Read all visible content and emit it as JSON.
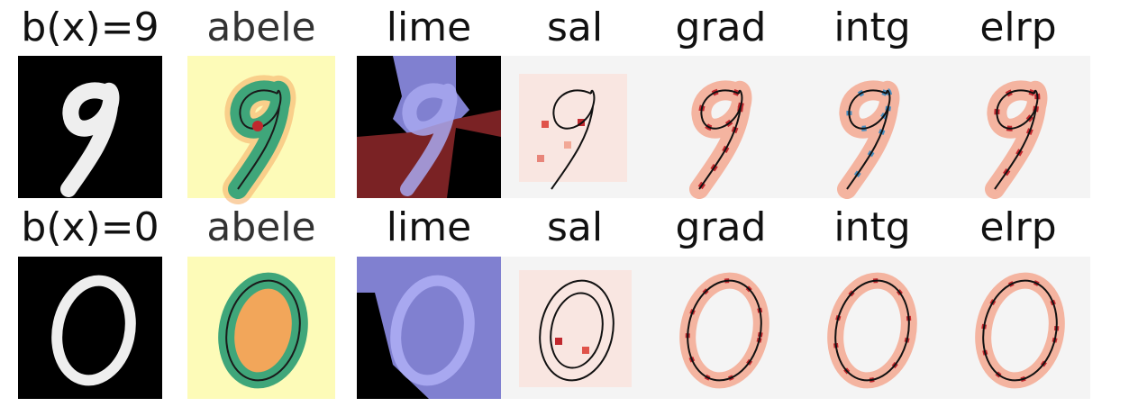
{
  "rows": [
    {
      "labels": [
        "b(x)=9",
        "abele",
        "lime",
        "sal",
        "grad",
        "intg",
        "elrp"
      ]
    },
    {
      "labels": [
        "b(x)=0",
        "abele",
        "lime",
        "sal",
        "grad",
        "intg",
        "elrp"
      ]
    }
  ]
}
